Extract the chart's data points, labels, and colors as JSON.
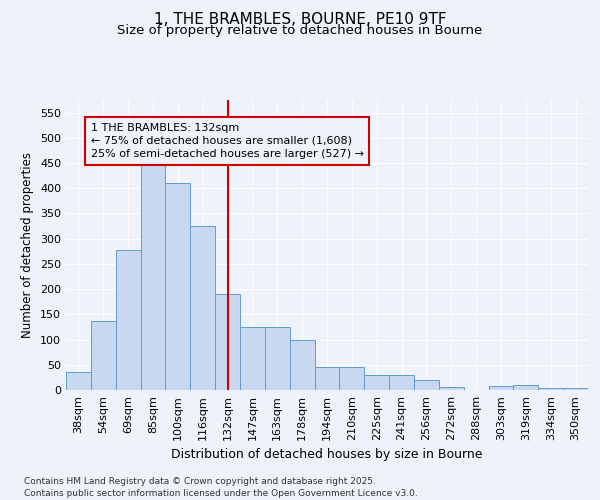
{
  "title_line1": "1, THE BRAMBLES, BOURNE, PE10 9TF",
  "title_line2": "Size of property relative to detached houses in Bourne",
  "xlabel": "Distribution of detached houses by size in Bourne",
  "ylabel": "Number of detached properties",
  "categories": [
    "38sqm",
    "54sqm",
    "69sqm",
    "85sqm",
    "100sqm",
    "116sqm",
    "132sqm",
    "147sqm",
    "163sqm",
    "178sqm",
    "194sqm",
    "210sqm",
    "225sqm",
    "241sqm",
    "256sqm",
    "272sqm",
    "288sqm",
    "303sqm",
    "319sqm",
    "334sqm",
    "350sqm"
  ],
  "bar_values": [
    35,
    137,
    277,
    450,
    410,
    325,
    190,
    125,
    125,
    100,
    46,
    46,
    30,
    30,
    19,
    6,
    0,
    7,
    9,
    4,
    3
  ],
  "bar_color": "#c8d8f0",
  "bar_edgecolor": "#6699cc",
  "vline_x_index": 6,
  "vline_color": "#cc0000",
  "annotation_line1": "1 THE BRAMBLES: 132sqm",
  "annotation_line2": "← 75% of detached houses are smaller (1,608)",
  "annotation_line3": "25% of semi-detached houses are larger (527) →",
  "annotation_box_edgecolor": "#cc0000",
  "ylim": [
    0,
    575
  ],
  "yticks": [
    0,
    50,
    100,
    150,
    200,
    250,
    300,
    350,
    400,
    450,
    500,
    550
  ],
  "background_color": "#eef2fb",
  "grid_color": "#ffffff",
  "footer_line1": "Contains HM Land Registry data © Crown copyright and database right 2025.",
  "footer_line2": "Contains public sector information licensed under the Open Government Licence v3.0.",
  "title_fontsize": 11,
  "subtitle_fontsize": 9.5,
  "tick_fontsize": 8,
  "ylabel_fontsize": 8.5,
  "xlabel_fontsize": 9,
  "annotation_fontsize": 8,
  "footer_fontsize": 6.5
}
